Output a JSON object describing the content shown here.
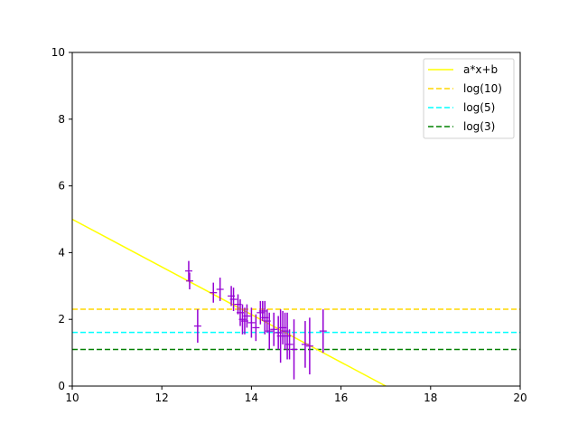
{
  "chart_data": {
    "type": "scatter",
    "xlim": [
      10,
      20
    ],
    "ylim": [
      0,
      10
    ],
    "x_ticks": [
      "10",
      "12",
      "14",
      "16",
      "18",
      "20"
    ],
    "y_ticks": [
      "0",
      "2",
      "4",
      "6",
      "8",
      "10"
    ],
    "grid": false,
    "legend_placement": "top-right",
    "legend": [
      "a*x+b",
      "log(10)",
      "log(5)",
      "log(3)"
    ],
    "lines": [
      {
        "name": "a*x+b",
        "kind": "fit",
        "color": "#ffff00",
        "dash": "solid",
        "x": [
          10,
          17
        ],
        "y": [
          5.0,
          0.0
        ]
      },
      {
        "name": "log(10)",
        "kind": "hline",
        "color": "#ffd700",
        "dash": "dashed",
        "y": 2.3026
      },
      {
        "name": "log(5)",
        "kind": "hline",
        "color": "#00ffff",
        "dash": "dashed",
        "y": 1.6094
      },
      {
        "name": "log(3)",
        "kind": "hline",
        "color": "#008000",
        "dash": "dashed",
        "y": 1.0986
      }
    ],
    "errorbar_series": {
      "color": "#9400d3",
      "points": [
        {
          "x": 12.6,
          "y": 3.45,
          "yerr": 0.3
        },
        {
          "x": 12.62,
          "y": 3.15,
          "yerr": 0.25
        },
        {
          "x": 12.8,
          "y": 1.8,
          "yerr": 0.5
        },
        {
          "x": 13.15,
          "y": 2.8,
          "yerr": 0.3
        },
        {
          "x": 13.3,
          "y": 2.9,
          "yerr": 0.35
        },
        {
          "x": 13.55,
          "y": 2.7,
          "yerr": 0.3
        },
        {
          "x": 13.6,
          "y": 2.6,
          "yerr": 0.35
        },
        {
          "x": 13.7,
          "y": 2.45,
          "yerr": 0.3
        },
        {
          "x": 13.75,
          "y": 2.2,
          "yerr": 0.4
        },
        {
          "x": 13.8,
          "y": 2.0,
          "yerr": 0.45
        },
        {
          "x": 13.85,
          "y": 1.95,
          "yerr": 0.4
        },
        {
          "x": 13.9,
          "y": 2.1,
          "yerr": 0.35
        },
        {
          "x": 14.0,
          "y": 1.9,
          "yerr": 0.45
        },
        {
          "x": 14.1,
          "y": 1.75,
          "yerr": 0.4
        },
        {
          "x": 14.2,
          "y": 2.2,
          "yerr": 0.35
        },
        {
          "x": 14.25,
          "y": 2.25,
          "yerr": 0.3
        },
        {
          "x": 14.3,
          "y": 2.05,
          "yerr": 0.5
        },
        {
          "x": 14.35,
          "y": 1.95,
          "yerr": 0.35
        },
        {
          "x": 14.4,
          "y": 1.65,
          "yerr": 0.55
        },
        {
          "x": 14.5,
          "y": 1.7,
          "yerr": 0.5
        },
        {
          "x": 14.6,
          "y": 1.6,
          "yerr": 0.5
        },
        {
          "x": 14.65,
          "y": 1.5,
          "yerr": 0.8
        },
        {
          "x": 14.7,
          "y": 1.75,
          "yerr": 0.5
        },
        {
          "x": 14.75,
          "y": 1.65,
          "yerr": 0.55
        },
        {
          "x": 14.8,
          "y": 1.5,
          "yerr": 0.7
        },
        {
          "x": 14.85,
          "y": 1.25,
          "yerr": 0.45
        },
        {
          "x": 14.95,
          "y": 1.1,
          "yerr": 0.9
        },
        {
          "x": 15.2,
          "y": 1.25,
          "yerr": 0.7
        },
        {
          "x": 15.3,
          "y": 1.2,
          "yerr": 0.85
        },
        {
          "x": 15.6,
          "y": 1.65,
          "yerr": 0.65
        }
      ]
    }
  }
}
